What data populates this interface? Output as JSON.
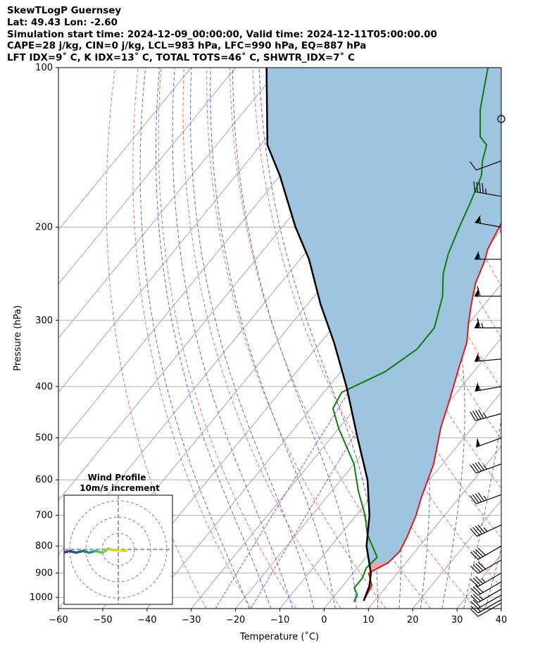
{
  "header": {
    "line1": "SkewTLogP Guernsey",
    "line2": "Lat: 49.43   Lon: -2.60",
    "line3": "Simulation start time: 2024-12-09_00:00:00, Valid time: 2024-12-11T05:00:00.00",
    "line4": "CAPE=28 j/kg, CIN=0 j/kg, LCL=983 hPa, LFC=990 hPa, EQ=887 hPa",
    "line5": "LFT IDX=9˚ C, K IDX=13˚ C, TOTAL TOTS=46˚ C, SHWTR_IDX=7˚ C"
  },
  "chart_data": {
    "type": "line",
    "subtype": "skew-t log-p",
    "xlabel": "Temperature (˚C)",
    "ylabel": "Pressure (hPa)",
    "xlim": [
      -60,
      40
    ],
    "ylim": [
      1050,
      100
    ],
    "y_scale": "log",
    "x_ticks": [
      "−60",
      "−50",
      "−40",
      "−30",
      "−20",
      "−10",
      "0",
      "10",
      "20",
      "30",
      "40"
    ],
    "y_ticks": [
      "100",
      "200",
      "300",
      "400",
      "500",
      "600",
      "700",
      "800",
      "900",
      "1000"
    ],
    "grid": true,
    "series": [
      {
        "role": "temperature",
        "color": "#e8161b",
        "points": [
          [
            7.5,
            1015
          ],
          [
            6.5,
            950
          ],
          [
            3.5,
            900
          ],
          [
            6.0,
            860
          ],
          [
            6.5,
            820
          ],
          [
            5.5,
            770
          ],
          [
            3.5,
            700
          ],
          [
            1.5,
            650
          ],
          [
            -2.0,
            560
          ],
          [
            -7.0,
            480
          ],
          [
            -10.5,
            420
          ],
          [
            -14.0,
            370
          ],
          [
            -17.0,
            330
          ],
          [
            -20.0,
            305
          ],
          [
            -23.0,
            280
          ],
          [
            -26.0,
            255
          ],
          [
            -28.0,
            232
          ],
          [
            -29.5,
            220
          ],
          [
            -31.0,
            200
          ],
          [
            -32.5,
            180
          ],
          [
            -34.0,
            165
          ],
          [
            -36.0,
            155
          ],
          [
            -40.0,
            140
          ],
          [
            -45.0,
            127
          ],
          [
            -47.0,
            118
          ],
          [
            -50.0,
            112
          ],
          [
            -52.0,
            105
          ],
          [
            -53.0,
            100
          ]
        ]
      },
      {
        "role": "dewpoint",
        "color": "#107a10",
        "points": [
          [
            5.5,
            1020
          ],
          [
            5.0,
            990
          ],
          [
            3.0,
            960
          ],
          [
            3.0,
            920
          ],
          [
            2.0,
            880
          ],
          [
            2.5,
            840
          ],
          [
            -4.0,
            760
          ],
          [
            -8.0,
            700
          ],
          [
            -14.0,
            630
          ],
          [
            -20.0,
            560
          ],
          [
            -30.0,
            480
          ],
          [
            -35.0,
            440
          ],
          [
            -36.0,
            410
          ],
          [
            -30.0,
            375
          ],
          [
            -27.0,
            340
          ],
          [
            -27.0,
            310
          ],
          [
            -31.0,
            270
          ],
          [
            -35.0,
            245
          ],
          [
            -37.5,
            225
          ],
          [
            -40.0,
            200
          ],
          [
            -42.0,
            180
          ],
          [
            -44.5,
            160
          ],
          [
            -47.0,
            150
          ],
          [
            -49.0,
            140
          ],
          [
            -52.0,
            135
          ],
          [
            -57.0,
            120
          ],
          [
            -63.0,
            100
          ]
        ]
      },
      {
        "role": "parcel",
        "color": "#000000",
        "points": [
          [
            7.5,
            1015
          ],
          [
            6.0,
            950
          ],
          [
            4.0,
            900
          ],
          [
            -2.0,
            800
          ],
          [
            -7.0,
            700
          ],
          [
            -14.0,
            600
          ],
          [
            -24.0,
            500
          ],
          [
            -36.0,
            400
          ],
          [
            -47.0,
            330
          ],
          [
            -57.0,
            280
          ],
          [
            -68.0,
            230
          ],
          [
            -77.0,
            200
          ],
          [
            -90.0,
            160
          ],
          [
            -98.5,
            140
          ],
          [
            -113.0,
            100
          ]
        ]
      }
    ],
    "shading": [
      {
        "between": [
          "temperature",
          "parcel"
        ],
        "color": "#9ec4e0",
        "note": "positive area"
      },
      {
        "between": [
          "temperature",
          "parcel"
        ],
        "color": "#e8a8a8",
        "note": "negative area near surface"
      }
    ],
    "wind_barbs": {
      "pressures": [
        125,
        150,
        175,
        200,
        230,
        270,
        310,
        355,
        400,
        450,
        500,
        560,
        640,
        730,
        800,
        850,
        900,
        935,
        965,
        990,
        1010,
        1025
      ],
      "speed_kt": [
        0,
        10,
        45,
        55,
        55,
        60,
        65,
        55,
        55,
        45,
        50,
        45,
        45,
        45,
        40,
        40,
        35,
        30,
        25,
        20,
        15,
        10
      ],
      "direction_deg": [
        0,
        250,
        280,
        280,
        270,
        270,
        270,
        265,
        260,
        255,
        250,
        250,
        250,
        245,
        240,
        240,
        240,
        240,
        240,
        240,
        240,
        240
      ]
    },
    "inset": {
      "title_line1": "Wind Profile",
      "title_line2": "10m/s increment",
      "rings_ms": [
        10,
        20,
        30
      ],
      "hodograph": [
        [
          5,
          -1
        ],
        [
          2,
          -1
        ],
        [
          -2,
          -0.5
        ],
        [
          -4,
          -0.2
        ],
        [
          -6,
          0.5
        ],
        [
          -8,
          -1
        ],
        [
          -10,
          -2
        ],
        [
          -12,
          -1.5
        ],
        [
          -14,
          -1
        ],
        [
          -16,
          -1.5
        ],
        [
          -18,
          -2
        ],
        [
          -20,
          -1.5
        ],
        [
          -22,
          -1
        ],
        [
          -24,
          -1.5
        ],
        [
          -26,
          -2
        ],
        [
          -28,
          -1.5
        ],
        [
          -30,
          -1
        ],
        [
          -32,
          -1.5
        ],
        [
          -34,
          -2
        ]
      ]
    }
  }
}
